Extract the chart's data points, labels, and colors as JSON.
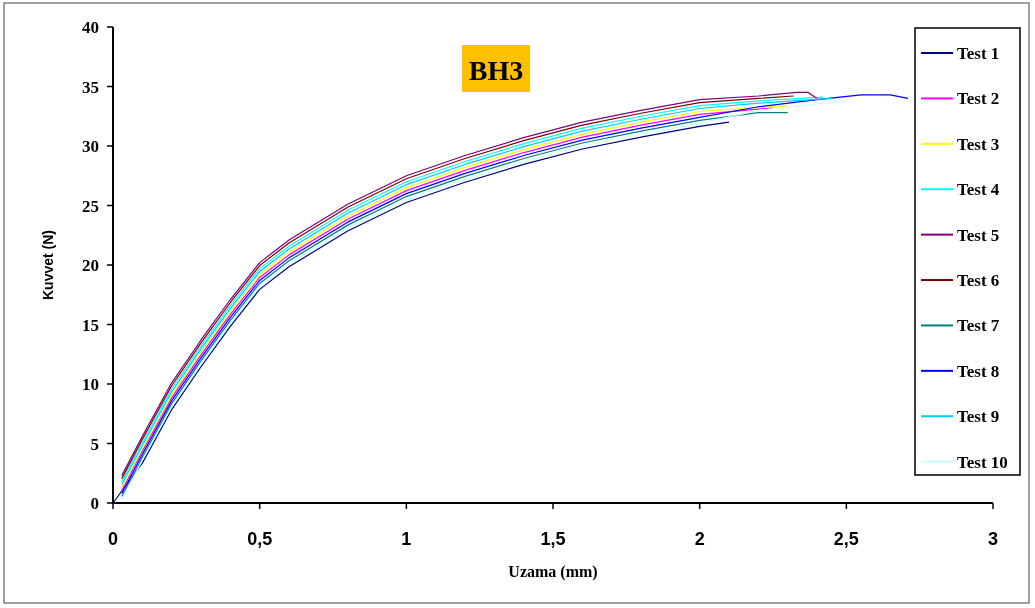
{
  "chart_data": {
    "type": "line",
    "title": "BH3",
    "xlabel": "Uzama (mm)",
    "ylabel": "Kuvvet (N)",
    "xlim": [
      0,
      3
    ],
    "xticks": [
      0,
      {
        "value": 0.5,
        "label": "0,5"
      },
      1,
      {
        "value": 1.5,
        "label": "1,5"
      },
      2,
      {
        "value": 2.5,
        "label": "2,5"
      },
      3
    ],
    "ylim": [
      0,
      40
    ],
    "yticks": [
      0,
      5,
      10,
      15,
      20,
      25,
      30,
      35,
      40
    ],
    "grid": false,
    "legend": "right",
    "marker": "none",
    "line_style": "solid",
    "series": [
      {
        "name": "Test 1",
        "color": "#000080",
        "x": [
          0,
          0.1,
          0.2,
          0.3,
          0.4,
          0.5,
          0.6,
          0.8,
          1,
          1.2,
          1.4,
          1.6,
          1.8,
          2,
          2.1
        ],
        "values": [
          0,
          3.35,
          7.85,
          11.45,
          14.85,
          17.95,
          19.85,
          22.85,
          25.25,
          26.95,
          28.45,
          29.75,
          30.75,
          31.65,
          32.0
        ]
      },
      {
        "name": "Test 2",
        "color": "#ff00ff",
        "x": [
          0.03,
          0.1,
          0.2,
          0.3,
          0.4,
          0.5,
          0.6,
          0.8,
          1,
          1.2,
          1.4,
          1.6,
          1.8,
          2,
          2.2,
          2.25
        ],
        "values": [
          1.05,
          4.35,
          8.85,
          12.45,
          15.85,
          18.95,
          20.85,
          23.85,
          26.25,
          27.95,
          29.45,
          30.75,
          31.75,
          32.65,
          33.1,
          33.2
        ]
      },
      {
        "name": "Test 3",
        "color": "#ffff00",
        "x": [
          0.03,
          0.1,
          0.2,
          0.3,
          0.4,
          0.5,
          0.6,
          0.8,
          1,
          1.2,
          1.4,
          1.6,
          1.8,
          2,
          2.3
        ],
        "values": [
          1.3,
          4.6,
          9.1,
          12.7,
          16.1,
          19.2,
          21.1,
          24.1,
          26.5,
          28.2,
          29.7,
          31.0,
          32.0,
          32.9,
          33.4
        ]
      },
      {
        "name": "Test 4",
        "color": "#00ffff",
        "x": [
          0.03,
          0.1,
          0.2,
          0.3,
          0.4,
          0.5,
          0.6,
          0.8,
          1,
          1.2,
          1.4,
          1.6,
          1.8,
          2,
          2.2,
          2.42
        ],
        "values": [
          1.8,
          5.1,
          9.6,
          13.2,
          16.6,
          19.7,
          21.6,
          24.6,
          27.0,
          28.7,
          30.2,
          31.5,
          32.5,
          33.4,
          33.8,
          34.1
        ]
      },
      {
        "name": "Test 5",
        "color": "#800080",
        "x": [
          0.03,
          0.1,
          0.2,
          0.3,
          0.4,
          0.5,
          0.6,
          0.8,
          1,
          1.2,
          1.4,
          1.6,
          1.8,
          2,
          2.2,
          2.33,
          2.37,
          2.4
        ],
        "values": [
          2.3,
          5.6,
          10.1,
          13.7,
          17.1,
          20.2,
          22.1,
          25.1,
          27.5,
          29.2,
          30.7,
          32.0,
          33.0,
          33.9,
          34.2,
          34.5,
          34.5,
          34.0
        ]
      },
      {
        "name": "Test 6",
        "color": "#800000",
        "x": [
          0.03,
          0.1,
          0.2,
          0.3,
          0.4,
          0.5,
          0.6,
          0.8,
          1,
          1.2,
          1.4,
          1.6,
          1.8,
          2,
          2.2,
          2.32
        ],
        "values": [
          2.05,
          5.35,
          9.85,
          13.45,
          16.85,
          19.95,
          21.85,
          24.85,
          27.25,
          28.95,
          30.45,
          31.75,
          32.75,
          33.65,
          34.0,
          34.2
        ]
      },
      {
        "name": "Test 7",
        "color": "#008080",
        "x": [
          0.03,
          0.1,
          0.2,
          0.3,
          0.4,
          0.5,
          0.6,
          0.8,
          1,
          1.2,
          1.4,
          1.6,
          1.8,
          2,
          2.2,
          2.3
        ],
        "values": [
          0.55,
          3.85,
          8.35,
          11.95,
          15.35,
          18.45,
          20.35,
          23.35,
          25.75,
          27.45,
          28.95,
          30.25,
          31.25,
          32.15,
          32.8,
          32.8
        ]
      },
      {
        "name": "Test 8",
        "color": "#0000ff",
        "x": [
          0.03,
          0.1,
          0.2,
          0.3,
          0.4,
          0.5,
          0.6,
          0.8,
          1,
          1.2,
          1.4,
          1.6,
          1.8,
          2,
          2.2,
          2.4,
          2.55,
          2.65,
          2.71
        ],
        "values": [
          0.8,
          4.1,
          8.6,
          12.2,
          15.6,
          18.7,
          20.6,
          23.6,
          26.0,
          27.7,
          29.2,
          30.5,
          31.5,
          32.4,
          33.3,
          33.9,
          34.3,
          34.3,
          34.0
        ]
      },
      {
        "name": "Test 9",
        "color": "#00ccff",
        "x": [
          0.03,
          0.1,
          0.2,
          0.3,
          0.4,
          0.5,
          0.6,
          0.8,
          1,
          1.2,
          1.4,
          1.6,
          1.8,
          2,
          2.2,
          2.45
        ],
        "values": [
          1.55,
          4.85,
          9.35,
          12.95,
          16.35,
          19.45,
          21.35,
          24.35,
          26.75,
          28.45,
          29.95,
          31.25,
          32.25,
          33.15,
          33.6,
          34.0
        ]
      },
      {
        "name": "Test 10",
        "color": "#ccffff",
        "x": [
          0.03,
          0.1,
          0.2,
          0.3,
          0.4,
          0.5,
          0.6,
          0.8,
          1,
          1.2,
          1.4,
          1.6,
          1.8,
          2,
          2.2,
          2.5
        ],
        "values": [
          0.3,
          3.6,
          8.1,
          11.7,
          15.1,
          18.2,
          20.1,
          23.1,
          25.5,
          27.2,
          28.7,
          30.0,
          31.0,
          31.9,
          33.0,
          33.8
        ]
      }
    ]
  }
}
